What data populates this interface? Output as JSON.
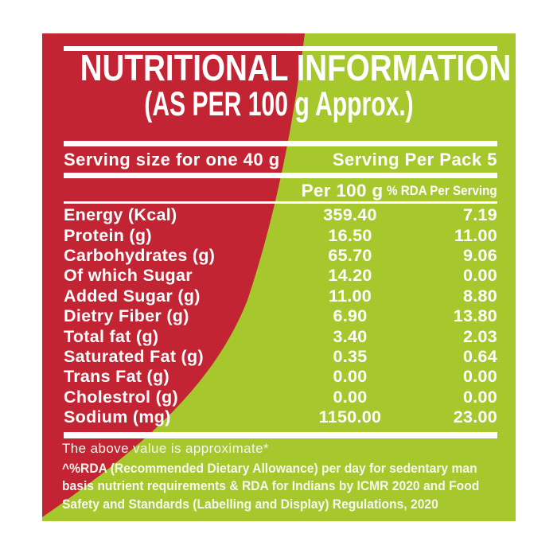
{
  "colors": {
    "red": "#c32433",
    "green": "#a6c82d",
    "text": "#ffffff",
    "page_background": "#ffffff"
  },
  "header": {
    "title": "NUTRITIONAL INFORMATION",
    "subtitle": "(AS PER 100 g Approx.)"
  },
  "serving": {
    "left": "Serving size for one 40 g",
    "right": "Serving Per Pack 5"
  },
  "columns": {
    "col1": "Per 100 g",
    "col2": "% RDA Per Serving"
  },
  "rows": [
    {
      "label": "Energy (Kcal)",
      "per100": "359.40",
      "rda": "7.19"
    },
    {
      "label": "Protein (g)",
      "per100": "16.50",
      "rda": "11.00"
    },
    {
      "label": "Carbohydrates (g)",
      "per100": "65.70",
      "rda": "9.06"
    },
    {
      "label": "Of which Sugar",
      "per100": "14.20",
      "rda": "0.00"
    },
    {
      "label": "Added Sugar (g)",
      "per100": "11.00",
      "rda": "8.80"
    },
    {
      "label": "Dietry Fiber (g)",
      "per100": "6.90",
      "rda": "13.80"
    },
    {
      "label": "Total fat (g)",
      "per100": "3.40",
      "rda": "2.03"
    },
    {
      "label": "Saturated Fat (g)",
      "per100": "0.35",
      "rda": "0.64"
    },
    {
      "label": "Trans Fat (g)",
      "per100": "0.00",
      "rda": "0.00"
    },
    {
      "label": "Cholestrol (g)",
      "per100": "0.00",
      "rda": "0.00"
    },
    {
      "label": "Sodium (mg)",
      "per100": "1150.00",
      "rda": "23.00"
    }
  ],
  "footer": {
    "approx_note": "The above value is approximate*",
    "rda_note_line1": "^%RDA (Recommended Dietary Allowance) per day for sedentary man",
    "rda_note_line2": "basis nutrient requirements & RDA for Indians by ICMR 2020 and Food",
    "rda_note_line3": "Safety and Standards (Labelling and Display) Regulations, 2020"
  }
}
